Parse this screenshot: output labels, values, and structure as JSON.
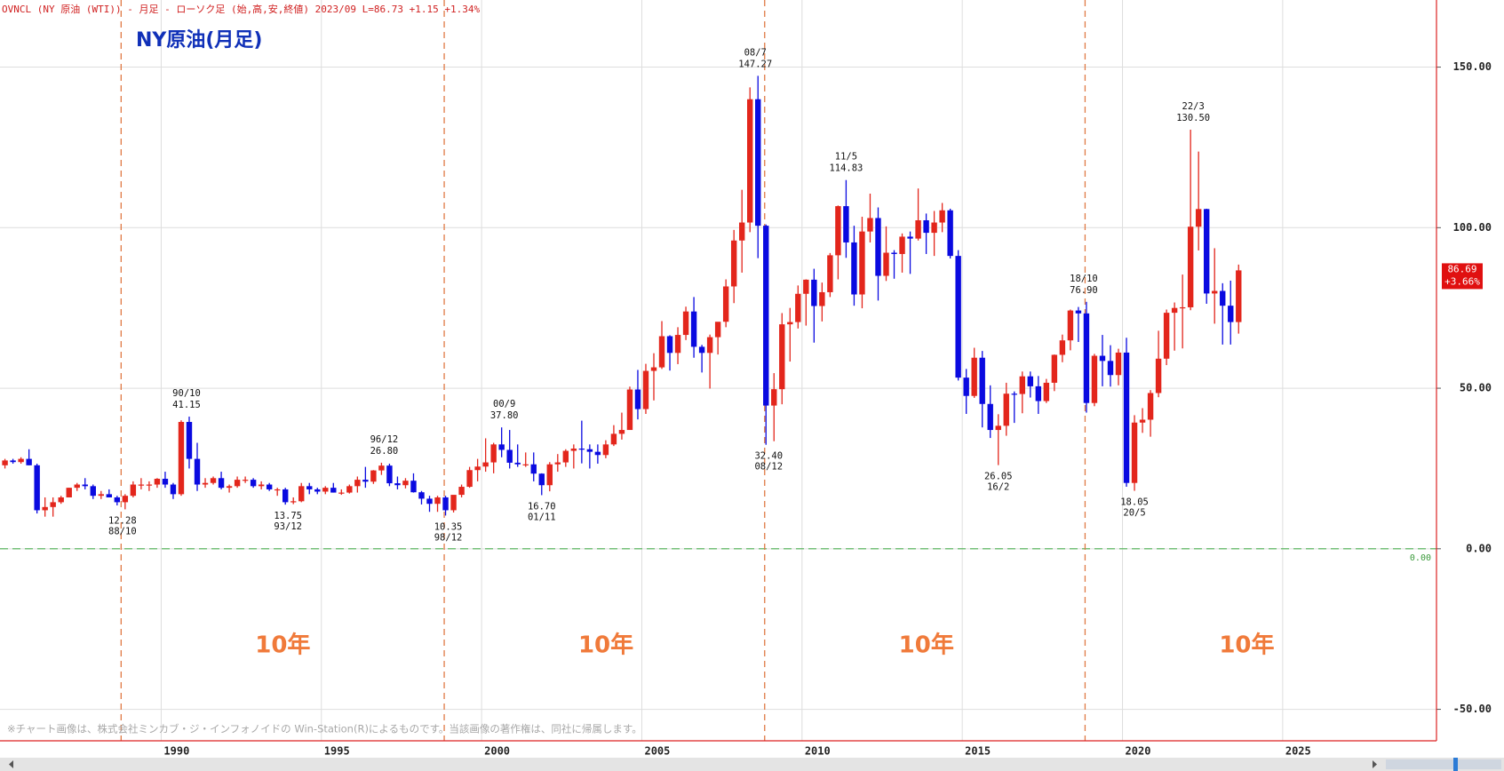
{
  "chart_data": {
    "type": "candlestick",
    "header": "OVNCL (NY 原油 (WTI)) - 月足 - ローソク足 (始,高,安,終値)  2023/09 L=86.73 +1.15  +1.34%",
    "title": "NY原油(月足)",
    "note": "※チャート画像は、株式会社ミンカブ・ジ・インフォノイドの Win-Station(R)によるものです。当該画像の著作権は、同社に帰属します。",
    "up_color": "#e3261c",
    "down_color": "#0a0ae0",
    "xlim": [
      1984.97,
      2029.8
    ],
    "xticks": [
      1990,
      1995,
      2000,
      2005,
      2010,
      2015,
      2020,
      2025
    ],
    "ylim": [
      -59.8,
      170.9
    ],
    "yticks": [
      {
        "value": -50,
        "label": "-50.00"
      },
      {
        "value": 0,
        "label": "0.00"
      },
      {
        "value": 50,
        "label": "50.00"
      },
      {
        "value": 100,
        "label": "100.00"
      },
      {
        "value": 150,
        "label": "150.00"
      }
    ],
    "grid": true,
    "zero_line": {
      "value": 0,
      "label": "0.00"
    },
    "period_lines": [
      "1988/10",
      "1998/11",
      "2008/11",
      "2018/11"
    ],
    "period_labels": [
      "10年",
      "10年",
      "10年",
      "10年"
    ],
    "last_tag": {
      "value": 86.69,
      "change": "+3.66%"
    },
    "annotations": [
      {
        "date": "88/10",
        "value": 12.28,
        "position": "below"
      },
      {
        "date": "90/10",
        "value": 41.15,
        "position": "above"
      },
      {
        "date": "93/12",
        "value": 13.75,
        "position": "below"
      },
      {
        "date": "96/12",
        "value": 26.8,
        "label": "26.80",
        "position": "above"
      },
      {
        "date": "98/12",
        "value": 10.35,
        "position": "below"
      },
      {
        "date": "00/9",
        "value": 37.8,
        "label": "37.80",
        "position": "above"
      },
      {
        "date": "01/11",
        "value": 16.7,
        "label": "16.70",
        "position": "below"
      },
      {
        "date": "08/7",
        "value": 147.27,
        "position": "above"
      },
      {
        "date": "08/12",
        "value": 32.4,
        "label": "32.40",
        "position": "below"
      },
      {
        "date": "11/5",
        "value": 114.83,
        "position": "above"
      },
      {
        "date": "16/2",
        "value": 26.05,
        "position": "below"
      },
      {
        "date": "18/10",
        "value": 76.9,
        "label": "76.90",
        "position": "above"
      },
      {
        "date": "20/5",
        "value": 18.05,
        "position": "below"
      },
      {
        "date": "22/3",
        "value": 130.5,
        "label": "130.50",
        "position": "above"
      }
    ],
    "x": [
      "1985/01",
      "1985/04",
      "1985/07",
      "1985/10",
      "1986/01",
      "1986/04",
      "1986/07",
      "1986/10",
      "1987/01",
      "1987/04",
      "1987/07",
      "1987/10",
      "1988/01",
      "1988/04",
      "1988/07",
      "1988/10",
      "1989/01",
      "1989/04",
      "1989/07",
      "1989/10",
      "1990/01",
      "1990/04",
      "1990/07",
      "1990/10",
      "1991/01",
      "1991/04",
      "1991/07",
      "1991/10",
      "1992/01",
      "1992/04",
      "1992/07",
      "1992/10",
      "1993/01",
      "1993/04",
      "1993/07",
      "1993/10",
      "1994/01",
      "1994/04",
      "1994/07",
      "1994/10",
      "1995/01",
      "1995/04",
      "1995/07",
      "1995/10",
      "1996/01",
      "1996/04",
      "1996/07",
      "1996/10",
      "1997/01",
      "1997/04",
      "1997/07",
      "1997/10",
      "1998/01",
      "1998/04",
      "1998/07",
      "1998/10",
      "1999/01",
      "1999/04",
      "1999/07",
      "1999/10",
      "2000/01",
      "2000/04",
      "2000/07",
      "2000/10",
      "2001/01",
      "2001/04",
      "2001/07",
      "2001/10",
      "2002/01",
      "2002/04",
      "2002/07",
      "2002/10",
      "2003/01",
      "2003/04",
      "2003/07",
      "2003/10",
      "2004/01",
      "2004/04",
      "2004/07",
      "2004/10",
      "2005/01",
      "2005/04",
      "2005/07",
      "2005/10",
      "2006/01",
      "2006/04",
      "2006/07",
      "2006/10",
      "2007/01",
      "2007/04",
      "2007/07",
      "2007/10",
      "2008/01",
      "2008/04",
      "2008/07",
      "2008/10",
      "2009/01",
      "2009/04",
      "2009/07",
      "2009/10",
      "2010/01",
      "2010/04",
      "2010/07",
      "2010/10",
      "2011/01",
      "2011/04",
      "2011/07",
      "2011/10",
      "2012/01",
      "2012/04",
      "2012/07",
      "2012/10",
      "2013/01",
      "2013/04",
      "2013/07",
      "2013/10",
      "2014/01",
      "2014/04",
      "2014/07",
      "2014/10",
      "2015/01",
      "2015/04",
      "2015/07",
      "2015/10",
      "2016/01",
      "2016/04",
      "2016/07",
      "2016/10",
      "2017/01",
      "2017/04",
      "2017/07",
      "2017/10",
      "2018/01",
      "2018/04",
      "2018/07",
      "2018/10",
      "2019/01",
      "2019/04",
      "2019/07",
      "2019/10",
      "2020/01",
      "2020/04",
      "2020/07",
      "2020/10",
      "2021/01",
      "2021/04",
      "2021/07",
      "2021/10",
      "2022/01",
      "2022/04",
      "2022/07",
      "2022/10",
      "2023/01",
      "2023/04",
      "2023/07"
    ],
    "open": [
      26,
      27.5,
      27,
      28,
      26,
      12,
      13,
      14.5,
      16,
      19,
      20,
      19.5,
      16.5,
      17,
      16,
      14.5,
      16.5,
      20,
      20,
      20,
      21.8,
      20,
      17,
      39.5,
      28,
      20,
      20.5,
      22,
      19,
      19.5,
      21.5,
      21.5,
      19.5,
      20,
      18.5,
      18.5,
      14.5,
      14.8,
      19.5,
      18.5,
      17.8,
      19,
      17.5,
      17.5,
      19.5,
      21.5,
      20.9,
      24.4,
      25.9,
      20.4,
      19.8,
      21.2,
      17.6,
      15.6,
      14,
      16,
      12,
      16.8,
      19.3,
      24.5,
      25.6,
      26.9,
      32.5,
      30.8,
      26.8,
      26.3,
      26.3,
      23.4,
      19.8,
      26.3,
      26.9,
      30.5,
      31.2,
      31,
      30.2,
      29.2,
      32.5,
      35.8,
      37,
      49.6,
      43.5,
      55.4,
      56.5,
      66.2,
      61,
      66.6,
      73.9,
      62.9,
      61,
      65.9,
      70.7,
      81.7,
      96,
      101.6,
      140,
      100.6,
      44.6,
      49.7,
      69.9,
      70.6,
      79.4,
      83.8,
      75.6,
      79.9,
      91.4,
      106.7,
      95.4,
      79.2,
      98.8,
      103,
      85,
      92.2,
      91.8,
      97.2,
      96.6,
      102.3,
      98.4,
      101.6,
      105.4,
      91.2,
      53.3,
      47.6,
      59.5,
      45.1,
      37,
      38.3,
      48.3,
      48.2,
      53.7,
      50.6,
      46,
      51.7,
      60.4,
      64.9,
      74.2,
      73.3,
      45.4,
      60.1,
      58.5,
      54.1,
      61.1,
      20.5,
      39.3,
      40.2,
      48.5,
      59.2,
      73.5,
      75,
      75.2,
      100.3,
      105.8,
      79.5,
      80.3,
      75.7,
      70.6
    ],
    "high": [
      28,
      28,
      28.5,
      31,
      26.5,
      16,
      16,
      16.5,
      19,
      20.5,
      22,
      20,
      18,
      18.5,
      16.5,
      17,
      21,
      22,
      21,
      22,
      24,
      20.5,
      40,
      41.15,
      33,
      22,
      22.5,
      24,
      20,
      22.5,
      22.5,
      22,
      21,
      20.5,
      19,
      19,
      16,
      20.5,
      20.5,
      19,
      19.5,
      20.5,
      18.5,
      20,
      22.5,
      25.5,
      24.5,
      26.8,
      26.5,
      22.5,
      22,
      23.5,
      18,
      16.5,
      16.5,
      16.5,
      16.5,
      20,
      25.5,
      28,
      34.4,
      33,
      37.8,
      37,
      32.5,
      30,
      30,
      23.5,
      27,
      29.5,
      31,
      32.5,
      39.9,
      32.5,
      32.5,
      33.8,
      38.5,
      42.4,
      50.5,
      55.7,
      57.6,
      60.9,
      70.9,
      66.5,
      69,
      75.4,
      78.4,
      63.5,
      66.7,
      70.5,
      83.9,
      99.3,
      111.8,
      143.7,
      147.27,
      101,
      54.7,
      73.4,
      75,
      82,
      83.9,
      87.2,
      82.9,
      92.1,
      106.9,
      114.83,
      100.6,
      103.4,
      110.6,
      106.3,
      100.4,
      93,
      98.2,
      98.8,
      112.2,
      104.4,
      105.2,
      107.7,
      105.9,
      93,
      56,
      62.6,
      61.6,
      50.9,
      41.9,
      51.7,
      49,
      55.2,
      55.2,
      53.8,
      52.9,
      60.5,
      66.7,
      74.5,
      75.3,
      76.9,
      60.7,
      66.6,
      63.4,
      62.3,
      65.7,
      41.6,
      43.8,
      49.4,
      67.9,
      74.5,
      76.7,
      85.4,
      130.5,
      123.7,
      105.9,
      93.6,
      82.7,
      83.5,
      88.5
    ],
    "low": [
      25,
      26.5,
      26.5,
      26,
      11,
      10,
      10,
      14,
      16,
      18,
      18.5,
      15.5,
      15.5,
      16,
      13.5,
      12.28,
      16,
      18.5,
      18,
      19,
      19,
      15.5,
      16.5,
      25,
      18,
      19,
      20,
      18.5,
      17.5,
      19,
      20.5,
      19,
      18.5,
      18,
      16.5,
      13.75,
      13.9,
      14.5,
      17,
      17,
      17,
      17.5,
      16.8,
      17.2,
      17.5,
      19,
      20.2,
      23,
      19.5,
      18.5,
      18.8,
      17.5,
      13.8,
      11.5,
      11.5,
      10.35,
      11.3,
      16,
      19,
      21,
      24,
      23.5,
      28.5,
      25,
      25.5,
      25.5,
      21,
      16.7,
      17.9,
      24,
      25.5,
      25,
      26.6,
      25,
      26.5,
      28.2,
      32,
      34,
      38,
      40.3,
      42,
      46.2,
      56,
      55.5,
      57.5,
      65,
      59.5,
      54.9,
      49.9,
      60.5,
      69,
      76.5,
      86,
      98.6,
      90.5,
      32.4,
      33.5,
      45,
      58.3,
      68.6,
      69.5,
      64.2,
      70.8,
      78.4,
      83.9,
      90.6,
      75.7,
      74.9,
      95.4,
      77.3,
      83.4,
      84.1,
      86,
      85.6,
      96,
      91.8,
      91.2,
      98.6,
      90.4,
      52.4,
      42,
      47,
      37.8,
      34.5,
      26.05,
      35.2,
      39.2,
      42.2,
      47.1,
      42,
      45.4,
      49.1,
      58.1,
      61.8,
      64.4,
      42.4,
      44.4,
      50.6,
      50.5,
      50.9,
      19.3,
      18.05,
      36.1,
      34.9,
      47.2,
      57.2,
      61.7,
      62.4,
      74.3,
      92.9,
      76.3,
      70.1,
      63.6,
      63.6,
      67
    ],
    "close": [
      27.5,
      27,
      28,
      26,
      12,
      13,
      14.5,
      16,
      19,
      20,
      19.5,
      16.5,
      17,
      16,
      14.5,
      16.5,
      20,
      20,
      20,
      21.8,
      20,
      17,
      39.5,
      28,
      20,
      20.5,
      22,
      19,
      19.5,
      21.5,
      21.5,
      19.5,
      20,
      18.5,
      18.5,
      14.5,
      14.8,
      19.5,
      18.5,
      17.8,
      19,
      17.5,
      17.5,
      19.5,
      21.5,
      20.9,
      24.4,
      25.9,
      20.4,
      19.8,
      21.2,
      17.6,
      15.6,
      14,
      16,
      12,
      16.8,
      19.3,
      24.5,
      25.6,
      26.9,
      32.5,
      30.8,
      26.8,
      26.3,
      26.3,
      23.4,
      19.8,
      26.3,
      26.9,
      30.5,
      31.2,
      31,
      30.2,
      29.2,
      32.5,
      35.8,
      37,
      49.6,
      43.5,
      55.4,
      56.5,
      66.2,
      61,
      66.6,
      73.9,
      62.9,
      61,
      65.9,
      70.7,
      81.7,
      96,
      101.6,
      140,
      100.6,
      44.6,
      49.7,
      69.9,
      70.6,
      79.4,
      83.8,
      75.6,
      79.9,
      91.4,
      106.7,
      95.4,
      79.2,
      98.8,
      103,
      85,
      92.2,
      91.8,
      97.2,
      96.6,
      102.3,
      98.4,
      101.6,
      105.4,
      91.2,
      53.3,
      47.6,
      59.5,
      45.1,
      37,
      38.3,
      48.3,
      48.2,
      53.7,
      50.6,
      46,
      51.7,
      60.4,
      64.9,
      74.2,
      73.3,
      45.4,
      60.1,
      58.5,
      54.1,
      61.1,
      20.5,
      39.3,
      40.2,
      48.5,
      59.2,
      73.5,
      75,
      75.2,
      100.3,
      105.8,
      79.5,
      80.3,
      75.7,
      70.6,
      86.7
    ]
  }
}
